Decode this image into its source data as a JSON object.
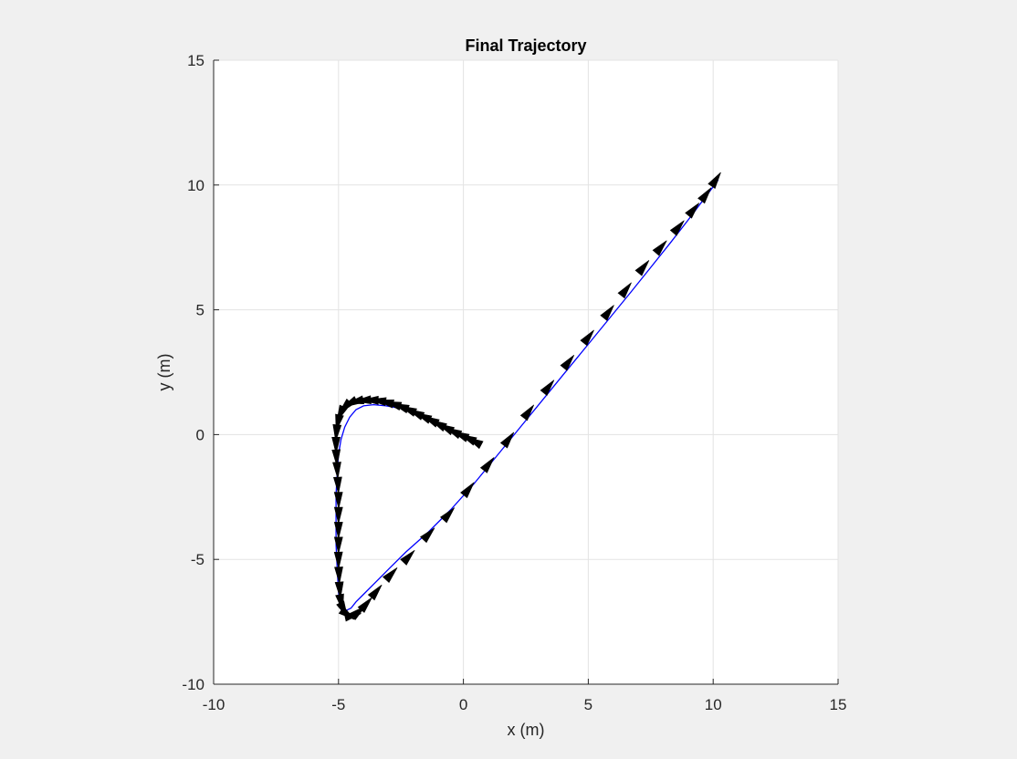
{
  "window": {
    "background": "#f0f0f0"
  },
  "chart_data": {
    "type": "line",
    "title": "Final Trajectory",
    "xlabel": "x (m)",
    "ylabel": "y (m)",
    "xlim": [
      -10,
      15
    ],
    "ylim": [
      -10,
      15
    ],
    "xticks": [
      -10,
      -5,
      0,
      5,
      10,
      15
    ],
    "yticks": [
      -10,
      -5,
      0,
      5,
      10,
      15
    ],
    "xtick_labels": [
      "-10",
      "-5",
      "0",
      "5",
      "10",
      "15"
    ],
    "ytick_labels": [
      "-10",
      "-5",
      "0",
      "5",
      "10",
      "15"
    ],
    "grid": true,
    "legend": "none",
    "colors": {
      "path": "#0000ff",
      "arrows": "#000000",
      "grid": "#e3e3e3",
      "axes": "#262626"
    },
    "series": [
      {
        "values_x": [
          10.2,
          9.6,
          9.0,
          8.3,
          7.5,
          6.7,
          5.8,
          4.9,
          4.0,
          3.1,
          2.2,
          1.3,
          0.4,
          -0.5,
          -1.4,
          -2.3,
          -3.0,
          -3.6,
          -4.0,
          -4.3,
          -4.5,
          -4.7,
          -4.85,
          -4.95,
          -5.0,
          -5.05,
          -5.1,
          -5.1,
          -5.1,
          -5.05,
          -5.0,
          -4.9,
          -4.75,
          -4.55,
          -4.3,
          -4.0,
          -3.6,
          -3.1,
          -2.5,
          -1.8,
          -1.1,
          -0.5,
          0.0,
          0.5
        ],
        "values_y": [
          10.2,
          9.4,
          8.6,
          7.7,
          6.7,
          5.7,
          4.6,
          3.5,
          2.4,
          1.3,
          0.2,
          -0.9,
          -2.0,
          -3.0,
          -3.9,
          -4.7,
          -5.4,
          -6.0,
          -6.4,
          -6.7,
          -6.95,
          -7.05,
          -7.0,
          -6.8,
          -6.3,
          -5.4,
          -4.4,
          -3.4,
          -2.4,
          -1.5,
          -0.8,
          -0.2,
          0.3,
          0.7,
          1.0,
          1.15,
          1.2,
          1.15,
          1.05,
          0.8,
          0.45,
          0.1,
          -0.15,
          -0.3
        ]
      }
    ],
    "heading_markers": [
      {
        "x": 10.1,
        "y": 10.2
      },
      {
        "x": 9.7,
        "y": 9.6
      },
      {
        "x": 9.2,
        "y": 9.0
      },
      {
        "x": 8.6,
        "y": 8.3
      },
      {
        "x": 7.9,
        "y": 7.5
      },
      {
        "x": 7.2,
        "y": 6.7
      },
      {
        "x": 6.5,
        "y": 5.8
      },
      {
        "x": 5.8,
        "y": 4.9
      },
      {
        "x": 5.0,
        "y": 3.9
      },
      {
        "x": 4.2,
        "y": 2.9
      },
      {
        "x": 3.4,
        "y": 1.9
      },
      {
        "x": 2.6,
        "y": 0.9
      },
      {
        "x": 1.8,
        "y": -0.2
      },
      {
        "x": 1.0,
        "y": -1.2
      },
      {
        "x": 0.2,
        "y": -2.2
      },
      {
        "x": -0.6,
        "y": -3.2
      },
      {
        "x": -1.4,
        "y": -4.0
      },
      {
        "x": -2.2,
        "y": -4.9
      },
      {
        "x": -2.9,
        "y": -5.6
      },
      {
        "x": -3.5,
        "y": -6.3
      },
      {
        "x": -3.9,
        "y": -6.8
      },
      {
        "x": -4.2,
        "y": -7.1
      },
      {
        "x": -4.45,
        "y": -7.25
      },
      {
        "x": -4.65,
        "y": -7.2
      },
      {
        "x": -4.8,
        "y": -7.0
      },
      {
        "x": -4.9,
        "y": -6.7
      },
      {
        "x": -4.95,
        "y": -6.2
      },
      {
        "x": -4.98,
        "y": -5.6
      },
      {
        "x": -5.0,
        "y": -5.0
      },
      {
        "x": -5.0,
        "y": -4.4
      },
      {
        "x": -5.0,
        "y": -3.8
      },
      {
        "x": -5.0,
        "y": -3.2
      },
      {
        "x": -5.0,
        "y": -2.6
      },
      {
        "x": -5.02,
        "y": -2.0
      },
      {
        "x": -5.05,
        "y": -1.4
      },
      {
        "x": -5.08,
        "y": -0.9
      },
      {
        "x": -5.1,
        "y": -0.4
      },
      {
        "x": -5.08,
        "y": 0.1
      },
      {
        "x": -5.02,
        "y": 0.5
      },
      {
        "x": -4.92,
        "y": 0.85
      },
      {
        "x": -4.75,
        "y": 1.1
      },
      {
        "x": -4.55,
        "y": 1.25
      },
      {
        "x": -4.3,
        "y": 1.33
      },
      {
        "x": -4.0,
        "y": 1.37
      },
      {
        "x": -3.7,
        "y": 1.38
      },
      {
        "x": -3.4,
        "y": 1.36
      },
      {
        "x": -3.1,
        "y": 1.3
      },
      {
        "x": -2.8,
        "y": 1.22
      },
      {
        "x": -2.5,
        "y": 1.12
      },
      {
        "x": -2.2,
        "y": 1.0
      },
      {
        "x": -1.9,
        "y": 0.86
      },
      {
        "x": -1.6,
        "y": 0.72
      },
      {
        "x": -1.3,
        "y": 0.58
      },
      {
        "x": -1.0,
        "y": 0.42
      },
      {
        "x": -0.7,
        "y": 0.27
      },
      {
        "x": -0.4,
        "y": 0.12
      },
      {
        "x": -0.1,
        "y": -0.02
      },
      {
        "x": 0.2,
        "y": -0.15
      },
      {
        "x": 0.45,
        "y": -0.28
      }
    ]
  }
}
